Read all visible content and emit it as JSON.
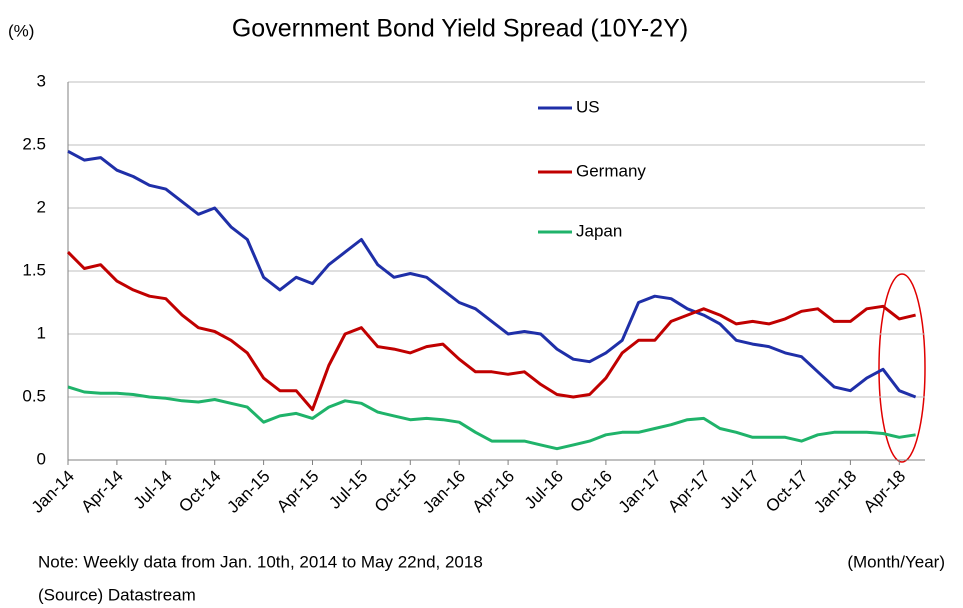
{
  "chart_data": {
    "type": "line",
    "title": "Government Bond Yield Spread (10Y-2Y)",
    "y_label": "(%)",
    "x_label": "(Month/Year)",
    "note": "Note: Weekly data from Jan. 10th, 2014 to May 22nd, 2018",
    "source": "(Source) Datastream",
    "categories": [
      "Jan-14",
      null,
      null,
      "Apr-14",
      null,
      null,
      "Jul-14",
      null,
      null,
      "Oct-14",
      null,
      null,
      "Jan-15",
      null,
      null,
      "Apr-15",
      null,
      null,
      "Jul-15",
      null,
      null,
      "Oct-15",
      null,
      null,
      "Jan-16",
      null,
      null,
      "Apr-16",
      null,
      null,
      "Jul-16",
      null,
      null,
      "Oct-16",
      null,
      null,
      "Jan-17",
      null,
      null,
      "Apr-17",
      null,
      null,
      "Jul-17",
      null,
      null,
      "Oct-17",
      null,
      null,
      "Jan-18",
      null,
      null,
      "Apr-18",
      null
    ],
    "series": [
      {
        "name": "US",
        "color": "#1f2fa8",
        "values": [
          2.45,
          2.38,
          2.4,
          2.3,
          2.25,
          2.18,
          2.15,
          2.05,
          1.95,
          2.0,
          1.85,
          1.75,
          1.45,
          1.35,
          1.45,
          1.4,
          1.55,
          1.65,
          1.75,
          1.55,
          1.45,
          1.48,
          1.45,
          1.35,
          1.25,
          1.2,
          1.1,
          1.0,
          1.02,
          1.0,
          0.88,
          0.8,
          0.78,
          0.85,
          0.95,
          1.25,
          1.3,
          1.28,
          1.2,
          1.15,
          1.08,
          0.95,
          0.92,
          0.9,
          0.85,
          0.82,
          0.7,
          0.58,
          0.55,
          0.65,
          0.72,
          0.55,
          0.5
        ]
      },
      {
        "name": "Germany",
        "color": "#c00000",
        "values": [
          1.65,
          1.52,
          1.55,
          1.42,
          1.35,
          1.3,
          1.28,
          1.15,
          1.05,
          1.02,
          0.95,
          0.85,
          0.65,
          0.55,
          0.55,
          0.4,
          0.75,
          1.0,
          1.05,
          0.9,
          0.88,
          0.85,
          0.9,
          0.92,
          0.8,
          0.7,
          0.7,
          0.68,
          0.7,
          0.6,
          0.52,
          0.5,
          0.52,
          0.65,
          0.85,
          0.95,
          0.95,
          1.1,
          1.15,
          1.2,
          1.15,
          1.08,
          1.1,
          1.08,
          1.12,
          1.18,
          1.2,
          1.1,
          1.1,
          1.2,
          1.22,
          1.12,
          1.15
        ]
      },
      {
        "name": "Japan",
        "color": "#1fb36a",
        "values": [
          0.58,
          0.54,
          0.53,
          0.53,
          0.52,
          0.5,
          0.49,
          0.47,
          0.46,
          0.48,
          0.45,
          0.42,
          0.3,
          0.35,
          0.37,
          0.33,
          0.42,
          0.47,
          0.45,
          0.38,
          0.35,
          0.32,
          0.33,
          0.32,
          0.3,
          0.22,
          0.15,
          0.15,
          0.15,
          0.12,
          0.09,
          0.12,
          0.15,
          0.2,
          0.22,
          0.22,
          0.25,
          0.28,
          0.32,
          0.33,
          0.25,
          0.22,
          0.18,
          0.18,
          0.18,
          0.15,
          0.2,
          0.22,
          0.22,
          0.22,
          0.21,
          0.18,
          0.2
        ]
      }
    ],
    "ylim": [
      0,
      3
    ],
    "yticks": [
      0,
      0.5,
      1,
      1.5,
      2,
      2.5,
      3
    ],
    "grid": true
  }
}
